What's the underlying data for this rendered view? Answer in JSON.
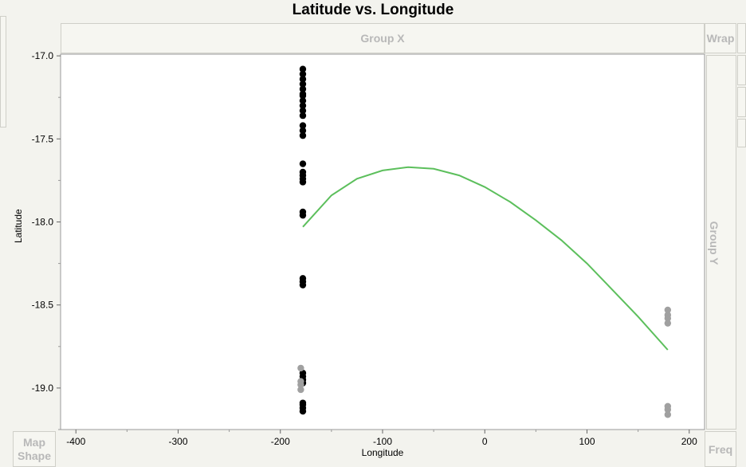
{
  "chart_data": {
    "type": "scatter",
    "title": "Latitude vs. Longitude",
    "xlabel": "Longitude",
    "ylabel": "Latitude",
    "xlim": [
      -415,
      215
    ],
    "ylim": [
      -19.25,
      -16.99
    ],
    "xticks": [
      "-400",
      "-300",
      "-200",
      "-100",
      "0",
      "100",
      "200"
    ],
    "xtick_values": [
      -400,
      -300,
      -200,
      -100,
      0,
      100,
      200
    ],
    "yticks": [
      "-17.0",
      "-17.5",
      "-18.0",
      "-18.5",
      "-19.0"
    ],
    "ytick_values": [
      -17.0,
      -17.5,
      -18.0,
      -18.5,
      -19.0
    ],
    "series": [
      {
        "color": "#000000",
        "x": [
          -178,
          -178,
          -178,
          -178,
          -178,
          -178,
          -178,
          -178,
          -178,
          -178,
          -178,
          -178,
          -178,
          -178,
          -178,
          -178,
          -178,
          -178,
          -178,
          -178,
          -178,
          -178,
          -178,
          -178,
          -178,
          -178,
          -178,
          -178,
          -178,
          -178,
          -178,
          -178
        ],
        "y": [
          -17.08,
          -17.11,
          -17.14,
          -17.17,
          -17.2,
          -17.24,
          -17.27,
          -17.3,
          -17.33,
          -17.42,
          -17.45,
          -17.48,
          -17.65,
          -17.7,
          -17.72,
          -17.74,
          -17.76,
          -17.94,
          -17.96,
          -18.34,
          -18.36,
          -18.38,
          -18.91,
          -18.93,
          -18.95,
          -19.1,
          -19.12,
          -19.14,
          -17.36,
          -17.23,
          -18.97,
          -19.09
        ]
      },
      {
        "color": "#a0a0a0",
        "x": [
          -180,
          -180,
          -180,
          -180,
          179,
          179,
          179,
          179,
          179,
          179,
          179
        ],
        "y": [
          -18.88,
          -18.98,
          -19.01,
          -18.96,
          -18.53,
          -18.56,
          -18.58,
          -18.61,
          -19.11,
          -19.13,
          -19.16
        ]
      }
    ],
    "fit_line": {
      "color": "#5cbf5c",
      "x": [
        -178,
        -150,
        -125,
        -100,
        -75,
        -50,
        -25,
        0,
        25,
        50,
        75,
        100,
        125,
        150,
        179
      ],
      "y": [
        -18.03,
        -17.84,
        -17.74,
        -17.69,
        -17.67,
        -17.68,
        -17.72,
        -17.79,
        -17.88,
        -17.99,
        -18.11,
        -18.25,
        -18.41,
        -18.57,
        -18.77
      ]
    }
  },
  "zones": {
    "group_x": "Group X",
    "group_y": "Group Y",
    "wrap": "Wrap",
    "map_shape_line1": "Map",
    "map_shape_line2": "Shape",
    "freq": "Freq"
  }
}
